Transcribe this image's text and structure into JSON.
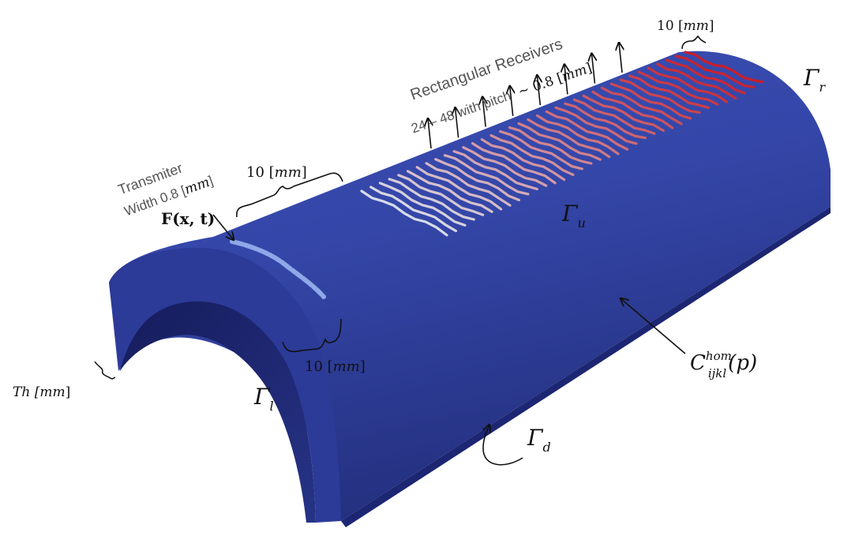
{
  "colors": {
    "shell_top": "#3a4fb0",
    "shell_mid": "#2f3f9e",
    "shell_dark": "#1f2a78",
    "inner_dark": "#1a226a",
    "wave_light": "#d8dce8",
    "wave_warm": "#e88a6a",
    "wave_red": "#c81e2a",
    "transmitter": "#8ea8e8"
  },
  "labels": {
    "receivers_title": "Rectangular Receivers",
    "receivers_count": "24 – 48 with pitch",
    "receivers_pitch": "~ 0.8 [",
    "receivers_pitch_unit": "mm",
    "receivers_pitch_close": "]",
    "dim_right": "10 [",
    "dim_right_unit": "mm",
    "dim_right_close": "]",
    "transmitter_title": "Transmiter",
    "transmitter_width": "Width 0.8 [",
    "transmitter_width_unit": "mm",
    "transmitter_width_close": "]",
    "force": "F(x, t)",
    "dim_top": "10 [",
    "dim_top_unit": "mm",
    "dim_top_close": "]",
    "dim_bottom": "10 [",
    "dim_bottom_unit": "mm",
    "dim_bottom_close": "]",
    "thickness": "Th [",
    "thickness_unit": "mm",
    "thickness_close": "]",
    "gamma_r": "Γ",
    "gamma_r_sub": "r",
    "gamma_u": "Γ",
    "gamma_u_sub": "u",
    "gamma_l": "Γ",
    "gamma_l_sub": "l",
    "gamma_d": "Γ",
    "gamma_d_sub": "d",
    "tensor_c": "C",
    "tensor_sup": "hom",
    "tensor_sub": "ijkl",
    "tensor_arg": "(p)"
  }
}
